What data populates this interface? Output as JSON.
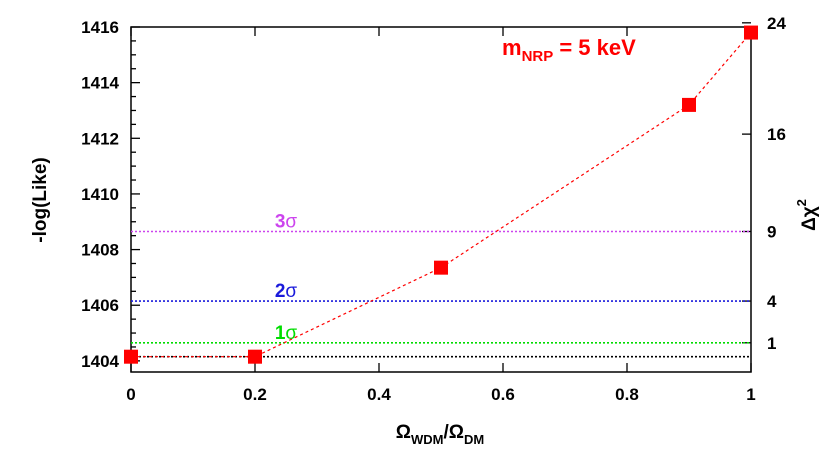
{
  "chart_data": {
    "type": "scatter",
    "xlabel": {
      "main": "Ω",
      "sub1": "WDM",
      "slash": "/Ω",
      "sub2": "DM"
    },
    "ylabel": "-log(Like)",
    "y2label": {
      "main": "Δχ",
      "sup": "2"
    },
    "xlim": [
      0,
      1
    ],
    "ylim": [
      1403.6,
      1416
    ],
    "x_ticks": [
      "0",
      "0.2",
      "0.4",
      "0.6",
      "0.8",
      "1"
    ],
    "x_tick_values": [
      0,
      0.2,
      0.4,
      0.6,
      0.8,
      1
    ],
    "y_ticks": [
      "1404",
      "1406",
      "1408",
      "1410",
      "1412",
      "1414",
      "1416"
    ],
    "y_tick_values": [
      1404,
      1406,
      1408,
      1410,
      1412,
      1414,
      1416
    ],
    "y2_ticks": [
      {
        "label": "1",
        "y": 1404.65
      },
      {
        "label": "4",
        "y": 1406.15
      },
      {
        "label": "9",
        "y": 1408.65
      },
      {
        "label": "16",
        "y": 1412.15
      },
      {
        "label": "24",
        "y": 1416.15
      }
    ],
    "series": [
      {
        "name": "",
        "color": "#ff0000",
        "marker": "square",
        "line": "dashed",
        "x": [
          0,
          0.2,
          0.5,
          0.9,
          1.0
        ],
        "y": [
          1404.15,
          1404.15,
          1407.35,
          1413.2,
          1415.8
        ]
      }
    ],
    "reference_lines": [
      {
        "label": "",
        "y": 1404.15,
        "color": "#000000"
      },
      {
        "label_num": "1",
        "label_sym": "σ",
        "y": 1404.65,
        "color": "#00dd00"
      },
      {
        "label_num": "2",
        "label_sym": "σ",
        "y": 1406.15,
        "color": "#1a1adb"
      },
      {
        "label_num": "3",
        "label_sym": "σ",
        "y": 1408.65,
        "color": "#cc44ee"
      }
    ],
    "annotation": {
      "prefix": "m",
      "sub": "NRP",
      "suffix": " = 5 keV",
      "color": "#ff0000"
    },
    "grid": false,
    "legend": "none"
  }
}
